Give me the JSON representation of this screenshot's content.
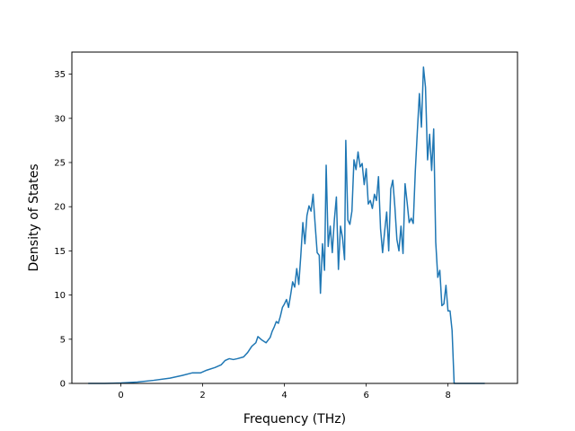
{
  "chart_data": {
    "type": "line",
    "title": "",
    "xlabel": "Frequency (THz)",
    "ylabel": "Density of States",
    "xlim": [
      -1.2,
      9.7
    ],
    "ylim": [
      0,
      37.5
    ],
    "xticks": [
      0,
      2,
      4,
      6,
      8
    ],
    "xtick_labels": [
      "0",
      "2",
      "4",
      "6",
      "8"
    ],
    "yticks": [
      0,
      5,
      10,
      15,
      20,
      25,
      30,
      35
    ],
    "ytick_labels": [
      "0",
      "5",
      "10",
      "15",
      "20",
      "25",
      "30",
      "35"
    ],
    "grid": false,
    "legend": "none",
    "colors": {
      "line": "#1f77b4",
      "axes": "#000000",
      "background": "#ffffff"
    },
    "series": [
      {
        "x": [
          -0.8,
          -0.4,
          0.0,
          0.4,
          0.8,
          1.2,
          1.5,
          1.75,
          1.95,
          2.1,
          2.3,
          2.45,
          2.55,
          2.65,
          2.75,
          2.85,
          3.0,
          3.1,
          3.2,
          3.3,
          3.35,
          3.45,
          3.55,
          3.65,
          3.7,
          3.75,
          3.8,
          3.85,
          3.9,
          3.95,
          4.0,
          4.05,
          4.1,
          4.15,
          4.2,
          4.25,
          4.3,
          4.35,
          4.4,
          4.45,
          4.5,
          4.55,
          4.6,
          4.65,
          4.7,
          4.75,
          4.8,
          4.85,
          4.88,
          4.93,
          4.98,
          5.02,
          5.07,
          5.12,
          5.17,
          5.22,
          5.27,
          5.32,
          5.37,
          5.42,
          5.47,
          5.5,
          5.55,
          5.6,
          5.65,
          5.7,
          5.75,
          5.8,
          5.85,
          5.9,
          5.95,
          6.0,
          6.05,
          6.1,
          6.15,
          6.2,
          6.25,
          6.3,
          6.35,
          6.4,
          6.45,
          6.5,
          6.55,
          6.6,
          6.65,
          6.7,
          6.75,
          6.8,
          6.85,
          6.9,
          6.95,
          7.0,
          7.05,
          7.1,
          7.15,
          7.2,
          7.25,
          7.3,
          7.35,
          7.4,
          7.45,
          7.5,
          7.55,
          7.6,
          7.65,
          7.7,
          7.75,
          7.8,
          7.85,
          7.9,
          7.95,
          8.0,
          8.05,
          8.1,
          8.15,
          8.3,
          8.6,
          8.9
        ],
        "y": [
          0,
          0,
          0.05,
          0.15,
          0.35,
          0.6,
          0.9,
          1.2,
          1.2,
          1.5,
          1.8,
          2.1,
          2.6,
          2.8,
          2.7,
          2.8,
          3.0,
          3.5,
          4.2,
          4.6,
          5.3,
          4.9,
          4.6,
          5.2,
          5.9,
          6.4,
          7.0,
          6.8,
          7.6,
          8.6,
          9.0,
          9.5,
          8.6,
          10.0,
          11.5,
          10.9,
          13.0,
          11.2,
          14.5,
          18.2,
          15.8,
          19.0,
          20.1,
          19.5,
          21.4,
          18.0,
          14.8,
          14.5,
          10.2,
          15.8,
          12.8,
          24.7,
          15.5,
          17.8,
          14.8,
          18.5,
          21.1,
          12.9,
          17.8,
          16.5,
          14.0,
          27.5,
          18.5,
          18.0,
          19.5,
          25.3,
          24.2,
          26.2,
          24.5,
          24.9,
          22.5,
          24.3,
          20.3,
          20.7,
          19.8,
          21.4,
          20.7,
          23.4,
          17.5,
          14.8,
          17.2,
          19.4,
          15.0,
          22.0,
          23.0,
          20.0,
          16.3,
          15.0,
          17.8,
          14.7,
          22.6,
          20.5,
          18.2,
          18.7,
          18.1,
          24.0,
          28.5,
          32.8,
          29.0,
          35.8,
          33.5,
          25.3,
          28.2,
          24.1,
          28.8,
          16.0,
          12.0,
          12.8,
          8.8,
          9.0,
          11.1,
          8.2,
          8.2,
          6.0,
          0,
          0,
          0,
          0
        ]
      }
    ]
  }
}
